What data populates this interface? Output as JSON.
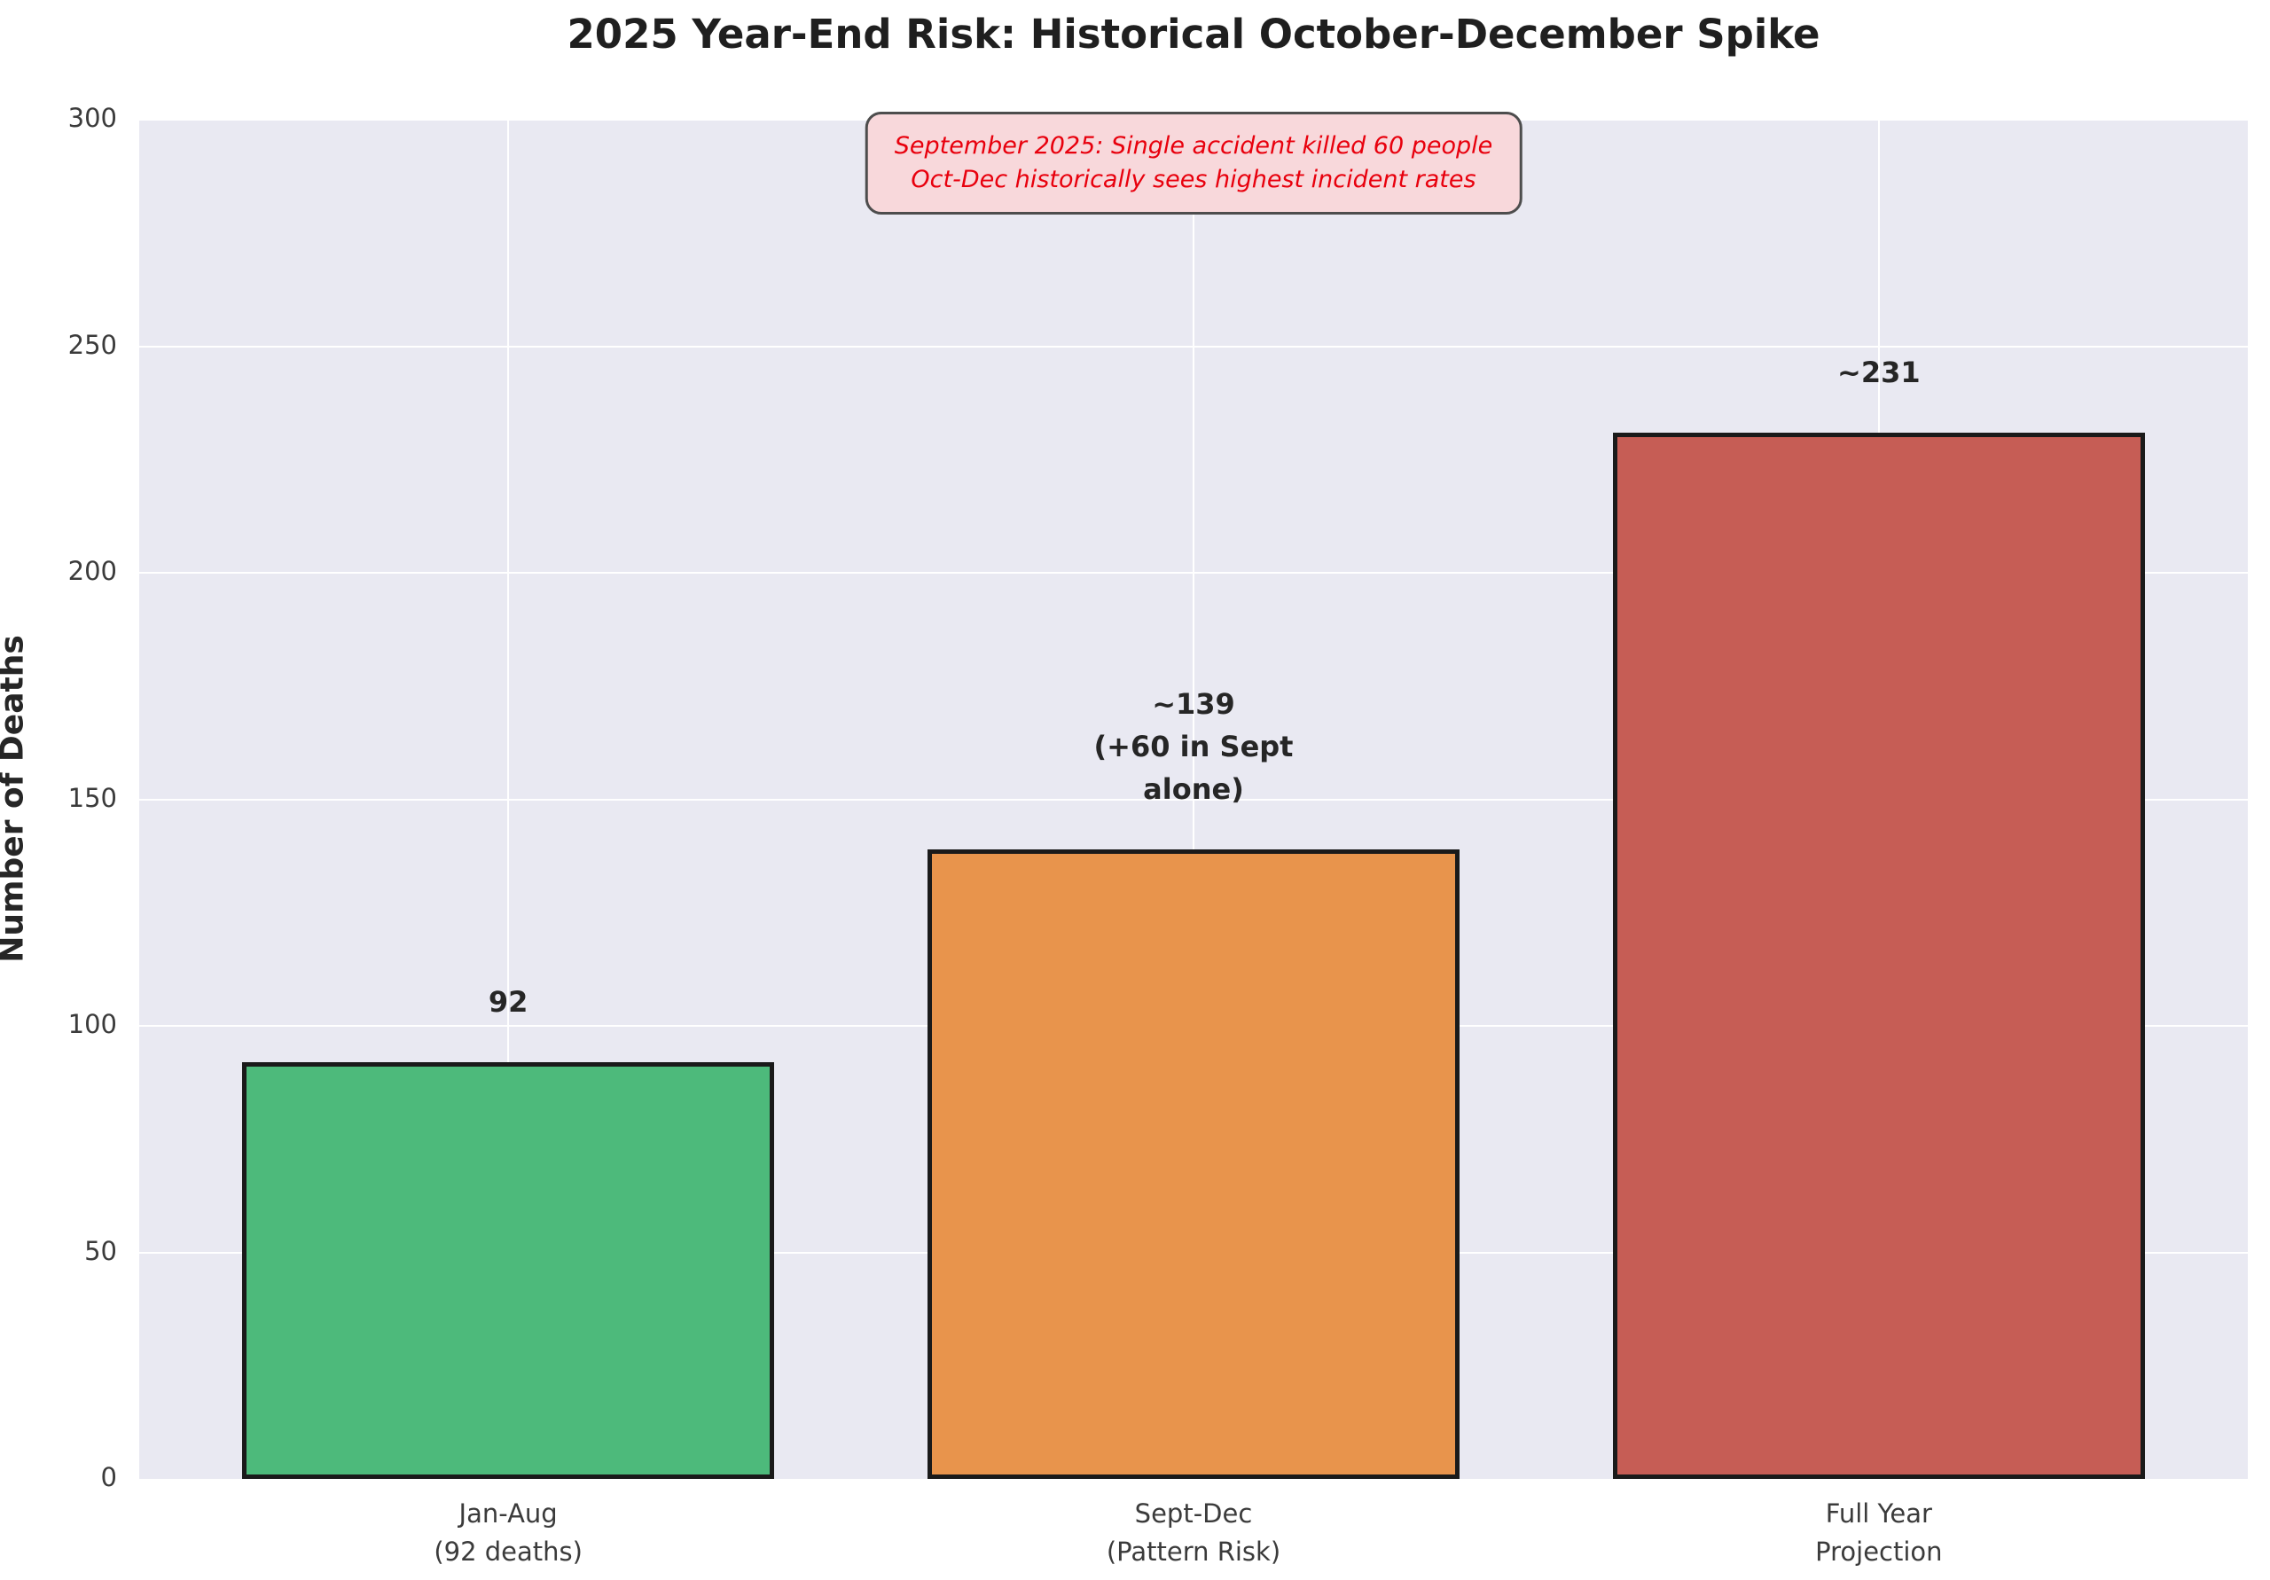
{
  "chart_data": {
    "type": "bar",
    "title": "2025 Year-End Risk: Historical October-December Spike",
    "xlabel": "",
    "ylabel": "Number of Deaths",
    "categories": [
      "Jan-Aug\n(92 deaths)",
      "Sept-Dec\n(Pattern Risk)",
      "Full Year\nProjection"
    ],
    "values": [
      92,
      139,
      231
    ],
    "bar_labels": [
      "92",
      "~139\n(+60 in Sept\nalone)",
      "~231"
    ],
    "bar_colors": [
      "#4dba7b",
      "#e8944c",
      "#c65d55"
    ],
    "bar_edge_color": "#1a1a1a",
    "ylim": [
      0,
      300
    ],
    "yticks": [
      0,
      50,
      100,
      150,
      200,
      250,
      300
    ],
    "grid": true,
    "plot_bg_color": "#e9e9f2",
    "grid_color": "#ffffff",
    "legend": null,
    "annotation": {
      "text": "September 2025: Single accident killed 60 people\nOct-Dec historically sees highest incident rates",
      "text_color": "#e8000d",
      "bg_color": "#f8d8db",
      "border_color": "#4d4d4d"
    }
  }
}
